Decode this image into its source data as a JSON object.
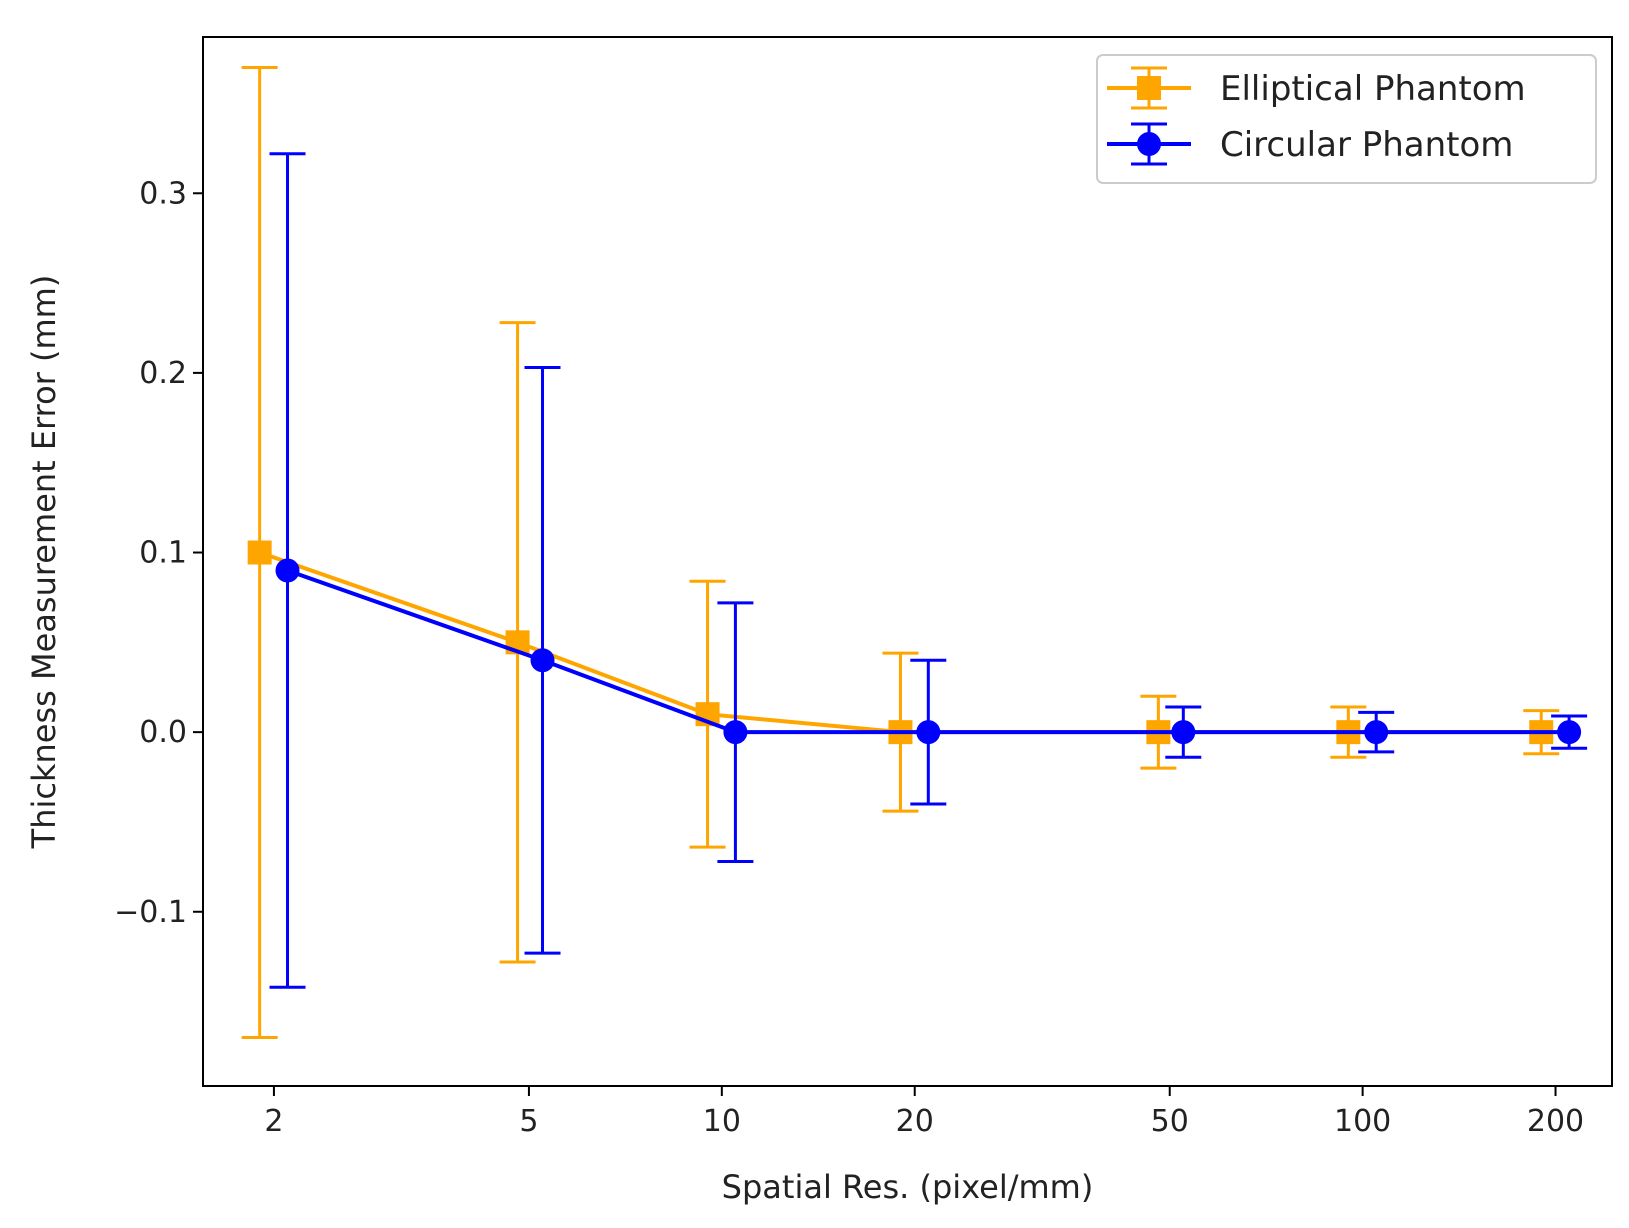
{
  "chart_data": {
    "type": "line",
    "title": "",
    "xlabel": "Spatial Res. (pixel/mm)",
    "ylabel": "Thickness Measurement Error (mm)",
    "xscale": "log",
    "x": [
      2,
      5,
      10,
      20,
      50,
      100,
      200
    ],
    "x_tick_labels": [
      "2",
      "5",
      "10",
      "20",
      "50",
      "100",
      "200"
    ],
    "y_ticks": [
      -0.1,
      0.0,
      0.1,
      0.2,
      0.3
    ],
    "y_tick_labels": [
      "−0.1",
      "0.0",
      "0.1",
      "0.2",
      "0.3"
    ],
    "xlim": [
      1.55,
      245
    ],
    "ylim": [
      -0.197,
      0.387
    ],
    "legend_position": "top-right",
    "series": [
      {
        "name": "Elliptical Phantom",
        "color": "#FFA500",
        "marker": "square",
        "x": [
          1.9,
          4.8,
          9.5,
          19,
          48,
          95,
          190
        ],
        "values": [
          0.1,
          0.05,
          0.01,
          0.0,
          0.0,
          0.0,
          0.0
        ],
        "errors": [
          0.27,
          0.178,
          0.074,
          0.044,
          0.02,
          0.014,
          0.012
        ]
      },
      {
        "name": "Circular Phantom",
        "color": "#0000FF",
        "marker": "circle",
        "x": [
          2.1,
          5.25,
          10.5,
          21,
          52.5,
          105,
          210
        ],
        "values": [
          0.09,
          0.04,
          0.0,
          0.0,
          0.0,
          0.0,
          0.0
        ],
        "errors": [
          0.232,
          0.163,
          0.072,
          0.04,
          0.014,
          0.011,
          0.009
        ]
      }
    ]
  }
}
